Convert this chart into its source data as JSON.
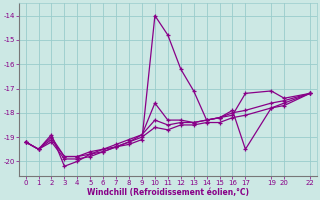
{
  "xlabel": "Windchill (Refroidissement éolien,°C)",
  "bg_color": "#cce8e4",
  "line_color": "#880088",
  "grid_color": "#99cccc",
  "xlim": [
    -0.5,
    22.5
  ],
  "ylim": [
    -20.6,
    -13.5
  ],
  "xticks": [
    0,
    1,
    2,
    3,
    4,
    5,
    6,
    7,
    8,
    9,
    10,
    11,
    12,
    13,
    14,
    15,
    16,
    17,
    19,
    20,
    22
  ],
  "yticks": [
    -14,
    -15,
    -16,
    -17,
    -18,
    -19,
    -20
  ],
  "lines": [
    {
      "x": [
        0,
        1,
        2,
        3,
        4,
        5,
        6,
        7,
        8,
        9,
        10,
        11,
        12,
        13,
        14,
        15,
        16,
        17,
        19,
        20,
        22
      ],
      "y": [
        -19.2,
        -19.5,
        -18.9,
        -20.2,
        -20.0,
        -19.7,
        -19.6,
        -19.4,
        -19.3,
        -19.1,
        -14.0,
        -14.8,
        -16.2,
        -17.1,
        -18.3,
        -18.2,
        -18.1,
        -17.2,
        -17.1,
        -17.4,
        -17.2
      ]
    },
    {
      "x": [
        0,
        1,
        2,
        3,
        4,
        5,
        6,
        7,
        8,
        9,
        10,
        11,
        12,
        13,
        14,
        15,
        16,
        17,
        19,
        20,
        22
      ],
      "y": [
        -19.2,
        -19.5,
        -19.0,
        -19.8,
        -19.8,
        -19.6,
        -19.5,
        -19.4,
        -19.2,
        -18.9,
        -17.6,
        -18.3,
        -18.3,
        -18.4,
        -18.3,
        -18.2,
        -17.9,
        -19.5,
        -17.8,
        -17.6,
        -17.2
      ]
    },
    {
      "x": [
        0,
        1,
        2,
        3,
        4,
        5,
        6,
        7,
        8,
        9,
        10,
        11,
        12,
        13,
        14,
        15,
        16,
        17,
        19,
        20,
        22
      ],
      "y": [
        -19.2,
        -19.5,
        -19.1,
        -19.8,
        -19.8,
        -19.7,
        -19.5,
        -19.3,
        -19.1,
        -18.9,
        -18.3,
        -18.5,
        -18.4,
        -18.4,
        -18.3,
        -18.2,
        -18.0,
        -17.9,
        -17.6,
        -17.5,
        -17.2
      ]
    },
    {
      "x": [
        0,
        1,
        2,
        3,
        4,
        5,
        6,
        7,
        8,
        9,
        10,
        11,
        12,
        13,
        14,
        15,
        16,
        17,
        19,
        20,
        22
      ],
      "y": [
        -19.2,
        -19.5,
        -19.2,
        -19.9,
        -19.9,
        -19.8,
        -19.6,
        -19.4,
        -19.2,
        -19.0,
        -18.6,
        -18.7,
        -18.5,
        -18.5,
        -18.4,
        -18.4,
        -18.2,
        -18.1,
        -17.8,
        -17.7,
        -17.2
      ]
    }
  ]
}
